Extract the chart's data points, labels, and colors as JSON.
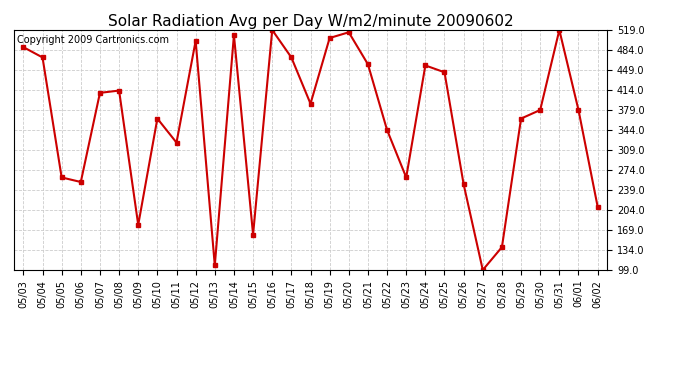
{
  "title": "Solar Radiation Avg per Day W/m2/minute 20090602",
  "copyright": "Copyright 2009 Cartronics.com",
  "dates": [
    "05/03",
    "05/04",
    "05/05",
    "05/06",
    "05/07",
    "05/08",
    "05/09",
    "05/10",
    "05/11",
    "05/12",
    "05/13",
    "05/14",
    "05/15",
    "05/16",
    "05/17",
    "05/18",
    "05/19",
    "05/20",
    "05/21",
    "05/22",
    "05/23",
    "05/24",
    "05/25",
    "05/26",
    "05/27",
    "05/28",
    "05/29",
    "05/30",
    "05/31",
    "06/01",
    "06/02"
  ],
  "values": [
    489,
    471,
    261,
    253,
    409,
    413,
    178,
    364,
    322,
    500,
    107,
    510,
    161,
    519,
    471,
    390,
    505,
    515,
    459,
    344,
    261,
    457,
    445,
    249,
    99,
    139,
    364,
    379,
    519,
    379,
    210
  ],
  "yticks": [
    99.0,
    134.0,
    169.0,
    204.0,
    239.0,
    274.0,
    309.0,
    344.0,
    379.0,
    414.0,
    449.0,
    484.0,
    519.0
  ],
  "ymin": 99.0,
  "ymax": 519.0,
  "line_color": "#cc0000",
  "marker": "s",
  "marker_size": 3,
  "grid_color": "#cccccc",
  "bg_color": "#ffffff",
  "title_fontsize": 11,
  "copyright_fontsize": 7,
  "tick_fontsize": 7,
  "figwidth": 6.9,
  "figheight": 3.75,
  "dpi": 100
}
